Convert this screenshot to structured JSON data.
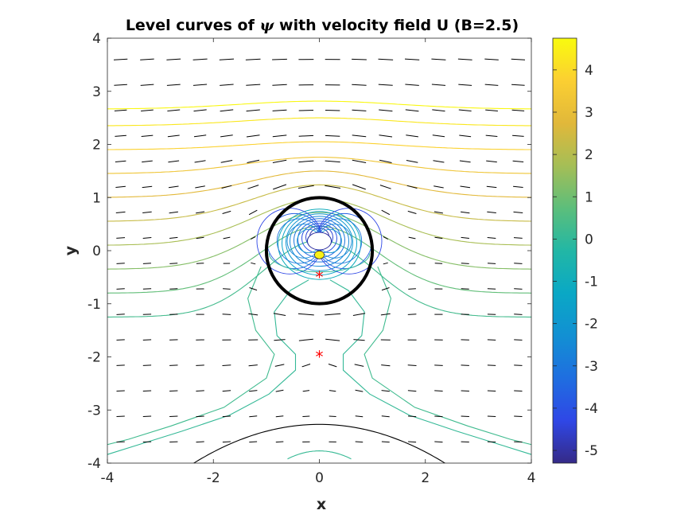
{
  "chart_data": {
    "type": "contour",
    "title_prefix": "Level curves of",
    "title_symbol": "ψ",
    "title_suffix": "with velocity field U (B=2.5)",
    "xlabel": "x",
    "ylabel": "y",
    "xlim": [
      -4,
      4
    ],
    "ylim": [
      -4,
      4
    ],
    "x_ticks": [
      -4,
      -2,
      0,
      2,
      4
    ],
    "y_ticks": [
      -4,
      -3,
      -2,
      -1,
      0,
      1,
      2,
      3,
      4
    ],
    "colorbar": {
      "limits": [
        -5.3,
        4.75
      ],
      "ticks": [
        -5,
        -4,
        -3,
        -2,
        -1,
        0,
        1,
        2,
        3,
        4
      ],
      "colormap": "parula"
    },
    "cylinder": {
      "center": [
        0,
        0
      ],
      "radius": 1,
      "color": "#000000"
    },
    "markers": [
      {
        "x": 0,
        "y": -0.5,
        "symbol": "*",
        "color": "#ff0000"
      },
      {
        "x": 0,
        "y": -2,
        "symbol": "*",
        "color": "#ff0000"
      }
    ],
    "stream_levels": [
      0.3,
      0.8,
      1.3,
      1.8,
      2.3,
      2.8,
      3.3,
      3.8,
      4.3,
      4.65
    ],
    "inner_levels": [
      -1.0,
      -1.5,
      -2.0,
      -2.5,
      -3.0,
      -3.5,
      -4.0,
      -4.5,
      -5.0
    ],
    "zero_contour_color": "#000000"
  }
}
